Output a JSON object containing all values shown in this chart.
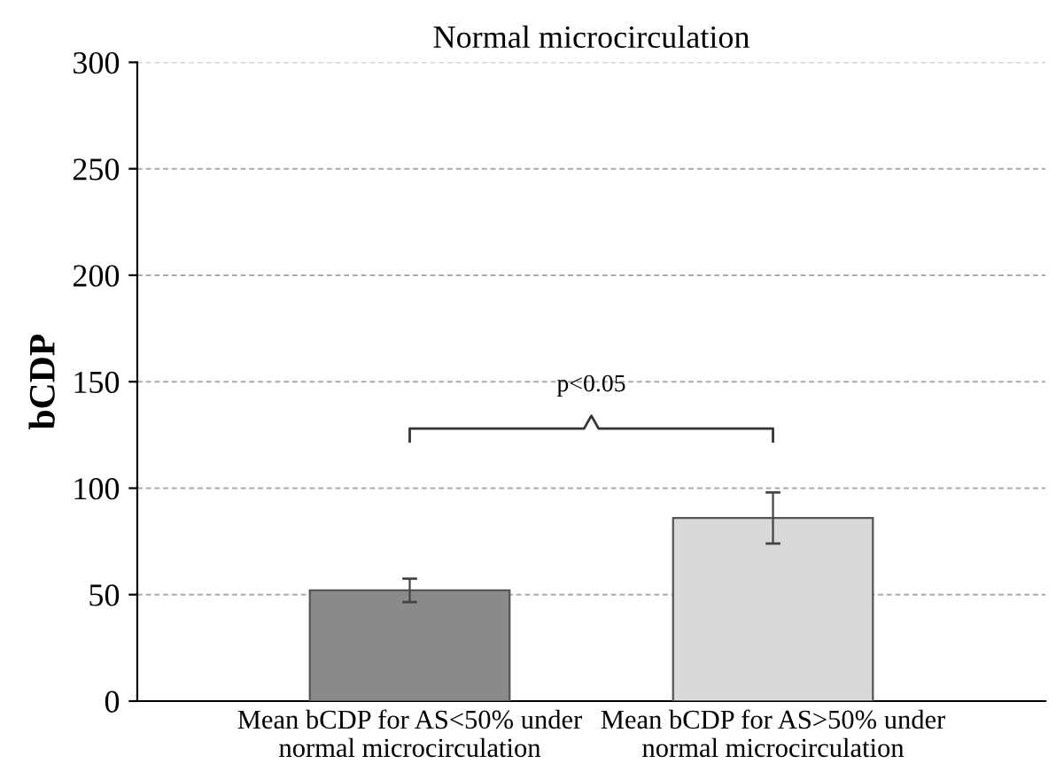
{
  "chart_data": {
    "type": "bar",
    "title": "Normal microcirculation",
    "ylabel": "bCDP",
    "categories": [
      "Mean bCDP for AS<50% under\nnormal microcirculation",
      "Mean bCDP for AS>50% under\nnormal microcirculation"
    ],
    "values": [
      52,
      86
    ],
    "colors": [
      "#8a8a8a",
      "#d9d9d9"
    ],
    "errors": [
      5.5,
      12
    ],
    "ylim": [
      0,
      300
    ],
    "yticks": [
      0,
      50,
      100,
      150,
      200,
      250,
      300
    ],
    "grid": "y",
    "annotations": [
      "p<0.05"
    ]
  }
}
